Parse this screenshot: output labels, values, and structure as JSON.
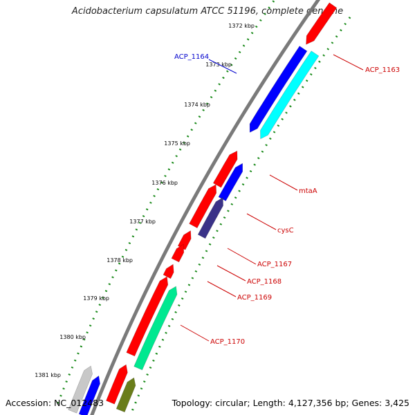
{
  "title": "Acidobacterium capsulatum ATCC 51196, complete genome",
  "footer": {
    "accession": "Accession: NC_012483",
    "topology": "Topology: circular; Length: 4,127,356 bp; Genes: 3,425"
  },
  "ticks": [
    "1372 kbp",
    "1373 kbp",
    "1374 kbp",
    "1375 kbp",
    "1376 kbp",
    "1377 kbp",
    "1378 kbp",
    "1379 kbp",
    "1380 kbp",
    "1381 kbp"
  ],
  "colors": {
    "red": "#ff0000",
    "blue": "#0000ff",
    "cyan": "#00ffff",
    "mint": "#00e890",
    "purple": "#3a3288",
    "olive": "#6a7d1a",
    "grey": "#c8c8c8",
    "backbone": "#7a7a7a",
    "dots": "#1a8a1a",
    "label_red": "#cc0000",
    "label_blue": "#0000cc"
  },
  "genes": [
    {
      "name": "ACP_1163",
      "color": "red"
    },
    {
      "name": "ACP_1164",
      "color": "blue"
    },
    {
      "name": "mtaA",
      "color": "red"
    },
    {
      "name": "cysC",
      "color": "red"
    },
    {
      "name": "ACP_1167",
      "color": "red"
    },
    {
      "name": "ACP_1168",
      "color": "red"
    },
    {
      "name": "ACP_1169",
      "color": "red"
    },
    {
      "name": "ACP_1170",
      "color": "red"
    }
  ]
}
